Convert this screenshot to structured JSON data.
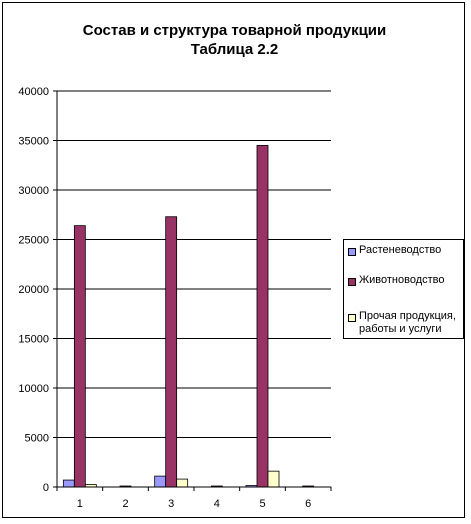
{
  "chart_data": {
    "type": "bar",
    "title_line1": "Состав и структура товарной продукции",
    "title_line2": "Таблица 2.2",
    "categories": [
      "1",
      "2",
      "3",
      "4",
      "5",
      "6"
    ],
    "ylim": [
      0,
      40000
    ],
    "yticks": [
      0,
      5000,
      10000,
      15000,
      20000,
      25000,
      30000,
      35000,
      40000
    ],
    "grid": true,
    "legend_position": "right",
    "series": [
      {
        "name": "Растеневодство",
        "color": "#9999FF",
        "values": [
          700,
          0,
          1100,
          0,
          150,
          0
        ]
      },
      {
        "name": "Животноводство",
        "color": "#993366",
        "values": [
          26400,
          60,
          27300,
          50,
          34500,
          60
        ]
      },
      {
        "name": "Прочая продукция, работы и услуги",
        "color": "#FFFFCC",
        "values": [
          250,
          0,
          800,
          0,
          1600,
          0
        ]
      }
    ]
  },
  "legend": {
    "item1": "Растеневодство",
    "item2": "Животноводство",
    "item3_line1": "Прочая продукция,",
    "item3_line2": "работы и услуги"
  }
}
